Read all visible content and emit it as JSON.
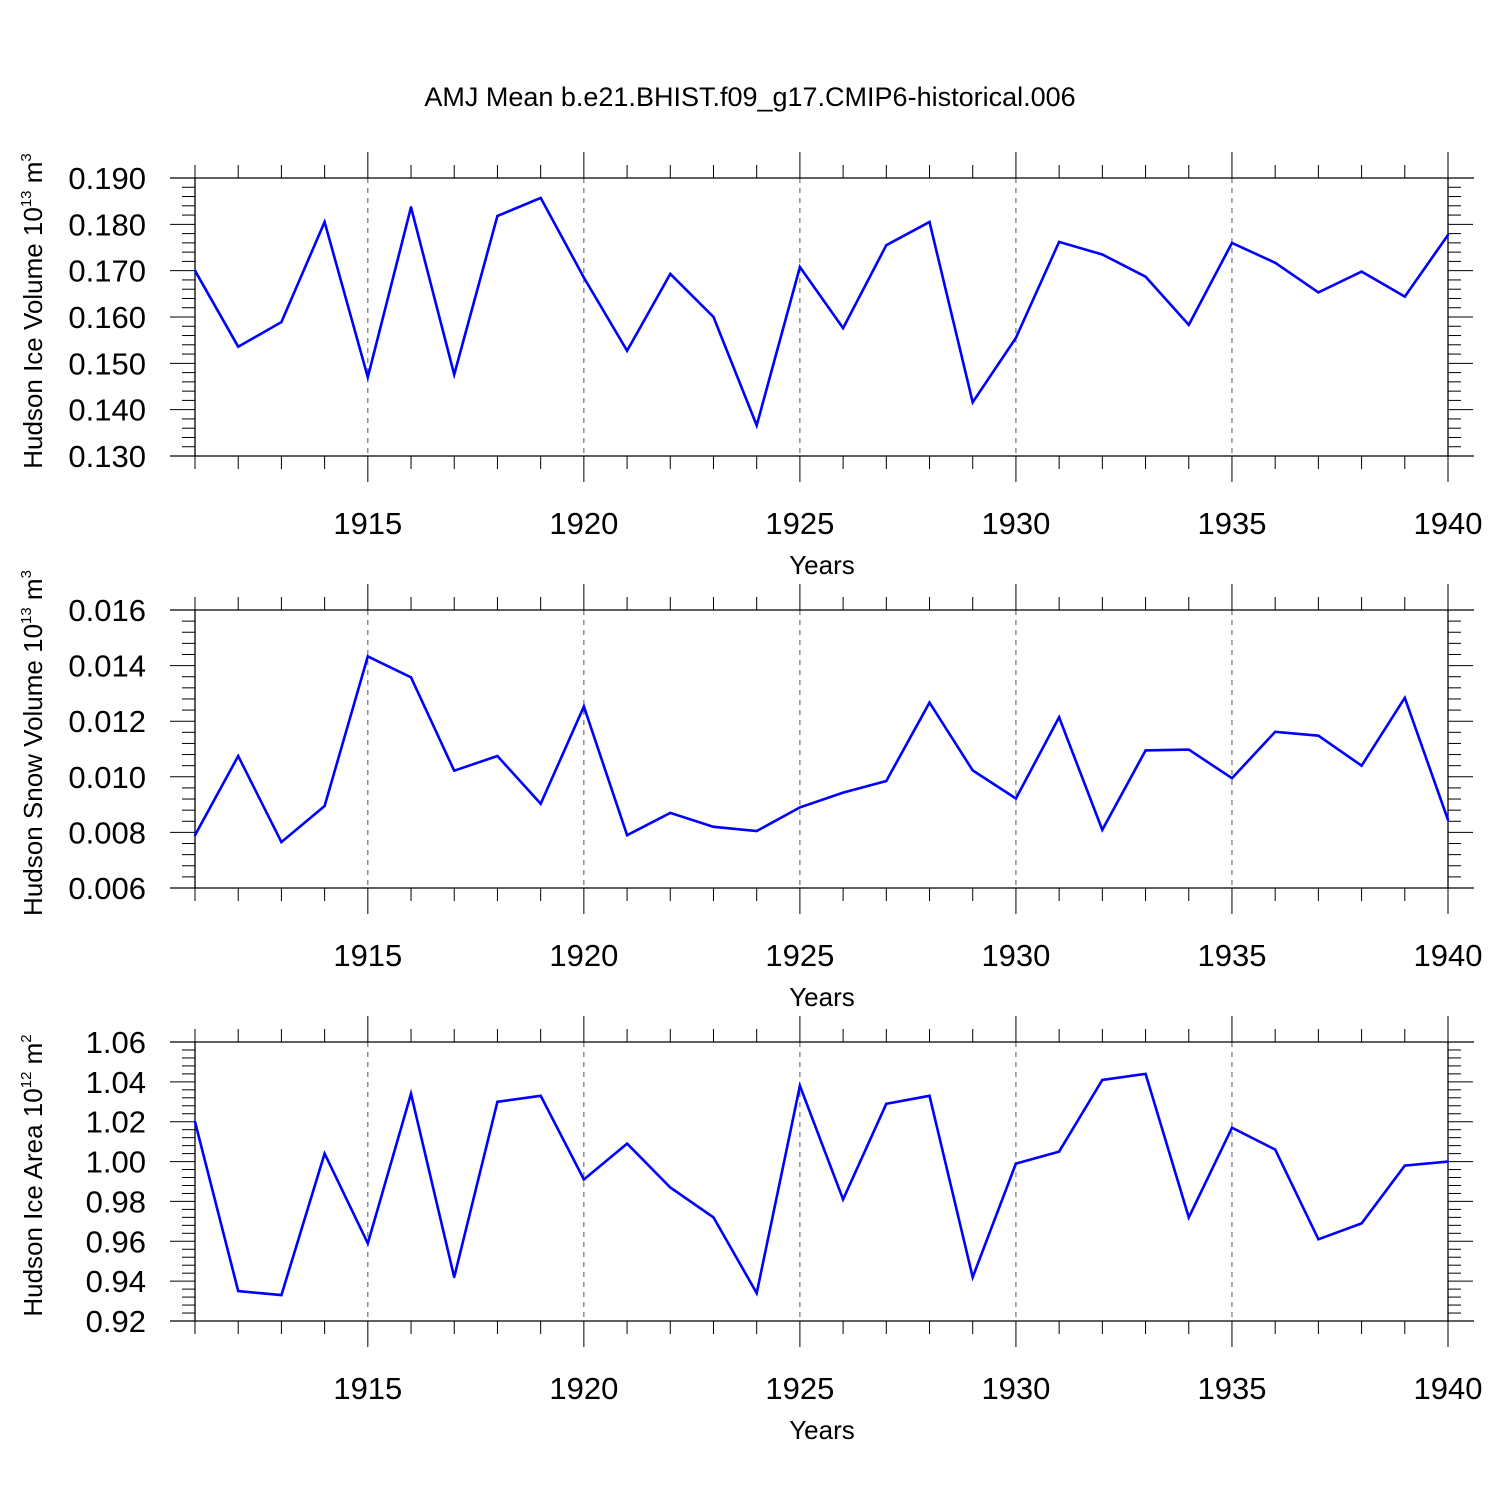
{
  "title": "AMJ Mean b.e21.BHIST.f09_g17.CMIP6-historical.006",
  "colors": {
    "line": "#0000ff",
    "axis": "#000000",
    "grid": "#555555"
  },
  "chart_data": [
    {
      "type": "line",
      "name": "ice-volume",
      "ylabel": {
        "main": "Hudson Ice Volume 10",
        "exp": "13",
        "unit": " m",
        "unit_exp": "3"
      },
      "xlabel": "Years",
      "xlim": [
        1911,
        1940
      ],
      "ylim": [
        0.13,
        0.19
      ],
      "yticks": [
        0.13,
        0.14,
        0.15,
        0.16,
        0.17,
        0.18,
        0.19
      ],
      "ytick_labels": [
        "0.130",
        "0.140",
        "0.150",
        "0.160",
        "0.170",
        "0.180",
        "0.190"
      ],
      "xticks": [
        1915,
        1920,
        1925,
        1930,
        1935,
        1940
      ],
      "xtick_labels": [
        "1915",
        "1920",
        "1925",
        "1930",
        "1935",
        "1940"
      ],
      "grid": "dashed-vertical",
      "x": [
        1911,
        1912,
        1913,
        1914,
        1915,
        1916,
        1917,
        1918,
        1919,
        1920,
        1921,
        1922,
        1923,
        1924,
        1925,
        1926,
        1927,
        1928,
        1929,
        1930,
        1931,
        1932,
        1933,
        1934,
        1935,
        1936,
        1937,
        1938,
        1939,
        1940
      ],
      "values": [
        0.17,
        0.1536,
        0.1589,
        0.1805,
        0.147,
        0.1837,
        0.1476,
        0.1818,
        0.1857,
        0.1685,
        0.1527,
        0.1693,
        0.16,
        0.1366,
        0.1708,
        0.1576,
        0.1755,
        0.1805,
        0.1416,
        0.1555,
        0.1762,
        0.1735,
        0.1687,
        0.1583,
        0.176,
        0.1717,
        0.1653,
        0.1698,
        0.1644,
        0.1777
      ]
    },
    {
      "type": "line",
      "name": "snow-volume",
      "ylabel": {
        "main": "Hudson Snow Volume 10",
        "exp": "13",
        "unit": " m",
        "unit_exp": "3"
      },
      "xlabel": "Years",
      "xlim": [
        1911,
        1940
      ],
      "ylim": [
        0.006,
        0.016
      ],
      "yticks": [
        0.006,
        0.008,
        0.01,
        0.012,
        0.014,
        0.016
      ],
      "ytick_labels": [
        "0.006",
        "0.008",
        "0.010",
        "0.012",
        "0.014",
        "0.016"
      ],
      "xticks": [
        1915,
        1920,
        1925,
        1930,
        1935,
        1940
      ],
      "xtick_labels": [
        "1915",
        "1920",
        "1925",
        "1930",
        "1935",
        "1940"
      ],
      "grid": "dashed-vertical",
      "x": [
        1911,
        1912,
        1913,
        1914,
        1915,
        1916,
        1917,
        1918,
        1919,
        1920,
        1921,
        1922,
        1923,
        1924,
        1925,
        1926,
        1927,
        1928,
        1929,
        1930,
        1931,
        1932,
        1933,
        1934,
        1935,
        1936,
        1937,
        1938,
        1939,
        1940
      ],
      "values": [
        0.0079,
        0.01075,
        0.00765,
        0.00895,
        0.01433,
        0.01358,
        0.01022,
        0.01075,
        0.00903,
        0.01253,
        0.0079,
        0.0087,
        0.0082,
        0.00805,
        0.0089,
        0.00943,
        0.00985,
        0.01267,
        0.01023,
        0.00922,
        0.01214,
        0.00809,
        0.01095,
        0.01098,
        0.00995,
        0.01162,
        0.01148,
        0.0104,
        0.01284,
        0.00845
      ]
    },
    {
      "type": "line",
      "name": "ice-area",
      "ylabel": {
        "main": "Hudson Ice Area 10",
        "exp": "12",
        "unit": " m",
        "unit_exp": "2"
      },
      "xlabel": "Years",
      "xlim": [
        1911,
        1940
      ],
      "ylim": [
        0.92,
        1.06
      ],
      "yticks": [
        0.92,
        0.94,
        0.96,
        0.98,
        1.0,
        1.02,
        1.04,
        1.06
      ],
      "ytick_labels": [
        "0.92",
        "0.94",
        "0.96",
        "0.98",
        "1.00",
        "1.02",
        "1.04",
        "1.06"
      ],
      "xticks": [
        1915,
        1920,
        1925,
        1930,
        1935,
        1940
      ],
      "xtick_labels": [
        "1915",
        "1920",
        "1925",
        "1930",
        "1935",
        "1940"
      ],
      "grid": "dashed-vertical",
      "x": [
        1911,
        1912,
        1913,
        1914,
        1915,
        1916,
        1917,
        1918,
        1919,
        1920,
        1921,
        1922,
        1923,
        1924,
        1925,
        1926,
        1927,
        1928,
        1929,
        1930,
        1931,
        1932,
        1933,
        1934,
        1935,
        1936,
        1937,
        1938,
        1939,
        1940
      ],
      "values": [
        1.02,
        0.935,
        0.933,
        1.004,
        0.959,
        1.034,
        0.942,
        1.03,
        1.033,
        0.991,
        1.009,
        0.987,
        0.972,
        0.934,
        1.038,
        0.981,
        1.029,
        1.033,
        0.942,
        0.999,
        1.005,
        1.041,
        1.044,
        0.972,
        1.017,
        1.006,
        0.961,
        0.969,
        0.998,
        1.0
      ]
    }
  ]
}
